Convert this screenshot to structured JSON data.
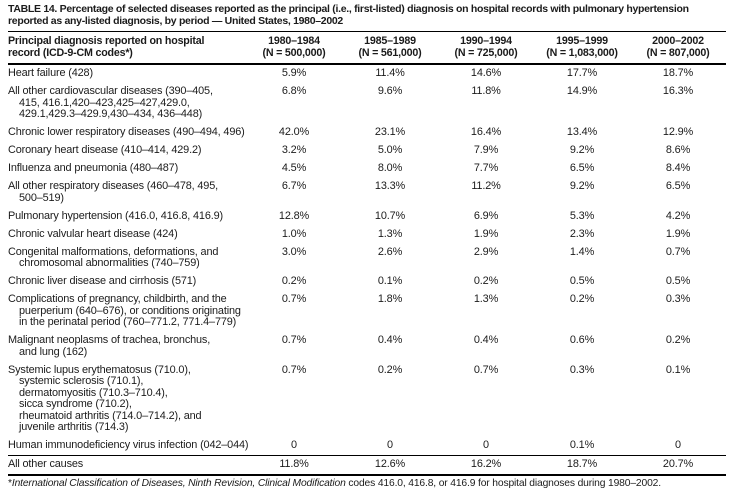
{
  "title": "TABLE 14. Percentage of selected diseases reported as the principal (i.e., first-listed) diagnosis on hospital records with pulmonary hypertension reported as any-listed diagnosis, by period — United States, 1980–2002",
  "colors": {
    "background": "#ffffff",
    "text": "#1b1b1b",
    "rule": "#000000"
  },
  "table": {
    "row_header": {
      "lines": [
        "Principal diagnosis reported on hospital",
        "record  (ICD-9-CM codes*)"
      ]
    },
    "columns": [
      {
        "period": "1980–1984",
        "n": "(N = 500,000)"
      },
      {
        "period": "1985–1989",
        "n": "(N = 561,000)"
      },
      {
        "period": "1990–1994",
        "n": "(N = 725,000)"
      },
      {
        "period": "1995–1999",
        "n": "(N = 1,083,000)"
      },
      {
        "period": "2000–2002",
        "n": "(N = 807,000)"
      }
    ],
    "rows": [
      {
        "label_lines": [
          "Heart failure (428)"
        ],
        "values": [
          "5.9%",
          "11.4%",
          "14.6%",
          "17.7%",
          "18.7%"
        ]
      },
      {
        "label_lines": [
          "All other cardiovascular diseases (390–405,",
          "415, 416.1,420–423,425–427,429.0,",
          "429.1,429.3–429.9,430–434, 436–448)"
        ],
        "values": [
          "6.8%",
          "9.6%",
          "11.8%",
          "14.9%",
          "16.3%"
        ]
      },
      {
        "label_lines": [
          "Chronic lower respiratory diseases (490–494, 496)"
        ],
        "values": [
          "42.0%",
          "23.1%",
          "16.4%",
          "13.4%",
          "12.9%"
        ]
      },
      {
        "label_lines": [
          "Coronary heart disease (410–414, 429.2)"
        ],
        "values": [
          "3.2%",
          "5.0%",
          "7.9%",
          "9.2%",
          "8.6%"
        ]
      },
      {
        "label_lines": [
          "Influenza and pneumonia (480–487)"
        ],
        "values": [
          "4.5%",
          "8.0%",
          "7.7%",
          "6.5%",
          "8.4%"
        ]
      },
      {
        "label_lines": [
          "All other respiratory diseases (460–478, 495,",
          "500–519)"
        ],
        "values": [
          "6.7%",
          "13.3%",
          "11.2%",
          "9.2%",
          "6.5%"
        ]
      },
      {
        "label_lines": [
          "Pulmonary hypertension (416.0, 416.8, 416.9)"
        ],
        "values": [
          "12.8%",
          "10.7%",
          "6.9%",
          "5.3%",
          "4.2%"
        ]
      },
      {
        "label_lines": [
          "Chronic valvular heart disease (424)"
        ],
        "values": [
          "1.0%",
          "1.3%",
          "1.9%",
          "2.3%",
          "1.9%"
        ]
      },
      {
        "label_lines": [
          "Congenital malformations, deformations, and",
          "chromosomal abnormalities (740–759)"
        ],
        "values": [
          "3.0%",
          "2.6%",
          "2.9%",
          "1.4%",
          "0.7%"
        ]
      },
      {
        "label_lines": [
          "Chronic liver disease and cirrhosis (571)"
        ],
        "values": [
          "0.2%",
          "0.1%",
          "0.2%",
          "0.5%",
          "0.5%"
        ]
      },
      {
        "label_lines": [
          "Complications of pregnancy, childbirth, and the",
          "puerperium (640–676), or conditions originating",
          "in the perinatal period (760–771.2, 771.4–779)"
        ],
        "values": [
          "0.7%",
          "1.8%",
          "1.3%",
          "0.2%",
          "0.3%"
        ]
      },
      {
        "label_lines": [
          "Malignant neoplasms of trachea, bronchus,",
          "and lung (162)"
        ],
        "values": [
          "0.7%",
          "0.4%",
          "0.4%",
          "0.6%",
          "0.2%"
        ]
      },
      {
        "label_lines": [
          "Systemic lupus erythematosus (710.0),",
          "systemic sclerosis (710.1),",
          "dermatomyositis (710.3–710.4),",
          "sicca syndrome (710.2),",
          "rheumatoid arthritis (714.0–714.2), and",
          "juvenile arthritis (714.3)"
        ],
        "values": [
          "0.7%",
          "0.2%",
          "0.7%",
          "0.3%",
          "0.1%"
        ]
      },
      {
        "label_lines": [
          "Human immunodeficiency virus infection (042–044)"
        ],
        "values": [
          "0",
          "0",
          "0",
          "0.1%",
          "0"
        ]
      },
      {
        "label_lines": [
          "All other causes"
        ],
        "values": [
          "11.8%",
          "12.6%",
          "16.2%",
          "18.7%",
          "20.7%"
        ],
        "total_row": true
      }
    ],
    "footnote": {
      "marker": "*",
      "italic_part": "International Classification of Diseases, Ninth Revision, Clinical Modification",
      "rest": " codes 416.0, 416.8, or 416.9 for hospital diagnoses during 1980–2002."
    }
  }
}
